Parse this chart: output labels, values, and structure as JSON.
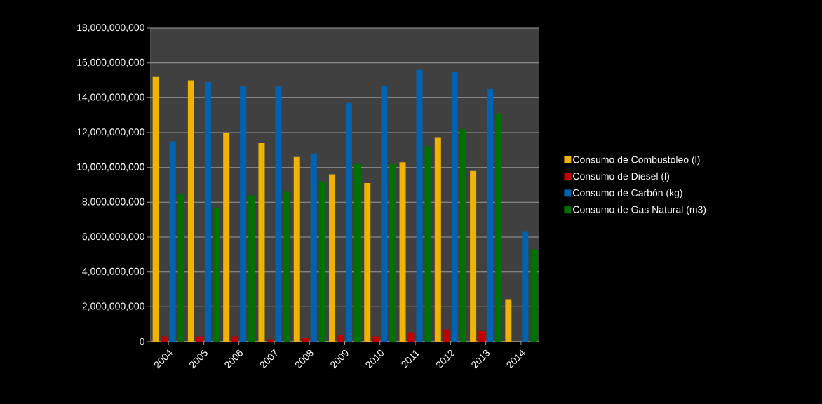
{
  "chart_data": {
    "type": "bar",
    "categories": [
      "2004",
      "2005",
      "2006",
      "2007",
      "2008",
      "2009",
      "2010",
      "2011",
      "2012",
      "2013",
      "2014"
    ],
    "series": [
      {
        "name": "Consumo de Combustóleo (l)",
        "color": "#f0b400",
        "values": [
          15200000000,
          15000000000,
          12000000000,
          11400000000,
          10600000000,
          9600000000,
          9100000000,
          10300000000,
          11700000000,
          9800000000,
          2400000000
        ]
      },
      {
        "name": "Consumo de Diesel (l)",
        "color": "#c00000",
        "values": [
          300000000,
          300000000,
          300000000,
          100000000,
          200000000,
          400000000,
          300000000,
          500000000,
          700000000,
          600000000,
          null
        ]
      },
      {
        "name": "Consumo de Carbón (kg)",
        "color": "#0063b1",
        "values": [
          11500000000,
          14900000000,
          14700000000,
          14700000000,
          10800000000,
          13700000000,
          14700000000,
          15600000000,
          15500000000,
          14500000000,
          6300000000
        ]
      },
      {
        "name": "Consumo de Gas Natural (m3)",
        "color": "#007000",
        "values": [
          8500000000,
          7700000000,
          8400000000,
          8600000000,
          9200000000,
          10200000000,
          10200000000,
          11200000000,
          12200000000,
          13100000000,
          5300000000
        ]
      }
    ],
    "ylim": [
      0,
      18000000000
    ],
    "yticks": [
      {
        "value": 0,
        "label": "0"
      },
      {
        "value": 2000000000,
        "label": "2,000,000,000"
      },
      {
        "value": 4000000000,
        "label": "4,000,000,000"
      },
      {
        "value": 6000000000,
        "label": "6,000,000,000"
      },
      {
        "value": 8000000000,
        "label": "8,000,000,000"
      },
      {
        "value": 10000000000,
        "label": "10,000,000,000"
      },
      {
        "value": 12000000000,
        "label": "12,000,000,000"
      },
      {
        "value": 14000000000,
        "label": "14,000,000,000"
      },
      {
        "value": 16000000000,
        "label": "16,000,000,000"
      },
      {
        "value": 18000000000,
        "label": "18,000,000,000"
      }
    ],
    "grid": "y",
    "legend": "right"
  }
}
